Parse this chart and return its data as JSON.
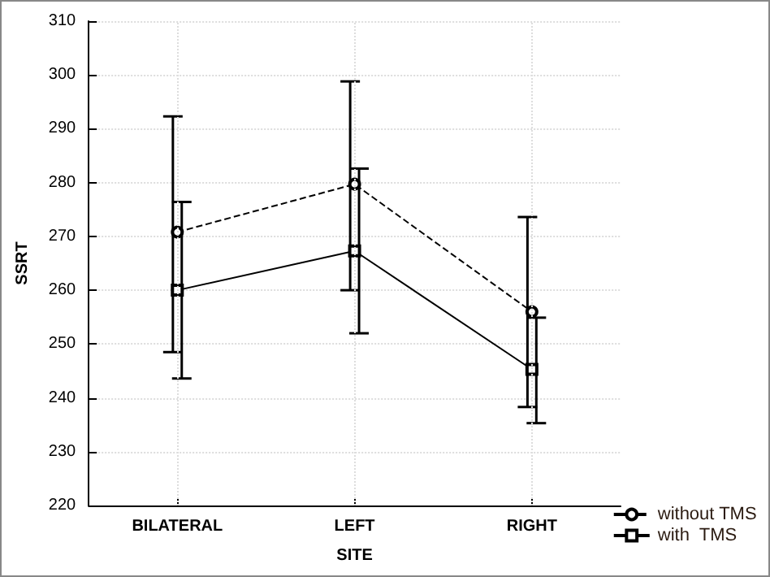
{
  "chart_data": {
    "type": "line",
    "xlabel": "SITE",
    "ylabel": "SSRT",
    "categories": [
      "BILATERAL",
      "LEFT",
      "RIGHT"
    ],
    "series": [
      {
        "name": "without TMS",
        "color": "#000000",
        "values": [
          270.8,
          279.7,
          256
        ],
        "errors": [
          [
            248.5,
            292.3
          ],
          [
            260,
            298.8
          ],
          [
            238.3,
            273.6
          ]
        ],
        "marker": "circle",
        "line_style": "dashed"
      },
      {
        "name": "with  TMS",
        "color": "#000000",
        "values": [
          260,
          267.3,
          245.3
        ],
        "errors": [
          [
            243.6,
            276.4
          ],
          [
            252,
            282.6
          ],
          [
            235.3,
            254.9
          ]
        ],
        "marker": "square",
        "line_style": "solid"
      }
    ],
    "ylim": [
      220,
      310
    ],
    "yticks": [
      220,
      230,
      240,
      250,
      260,
      270,
      280,
      290,
      300,
      310
    ],
    "grid": true,
    "legend": "bottom right"
  }
}
